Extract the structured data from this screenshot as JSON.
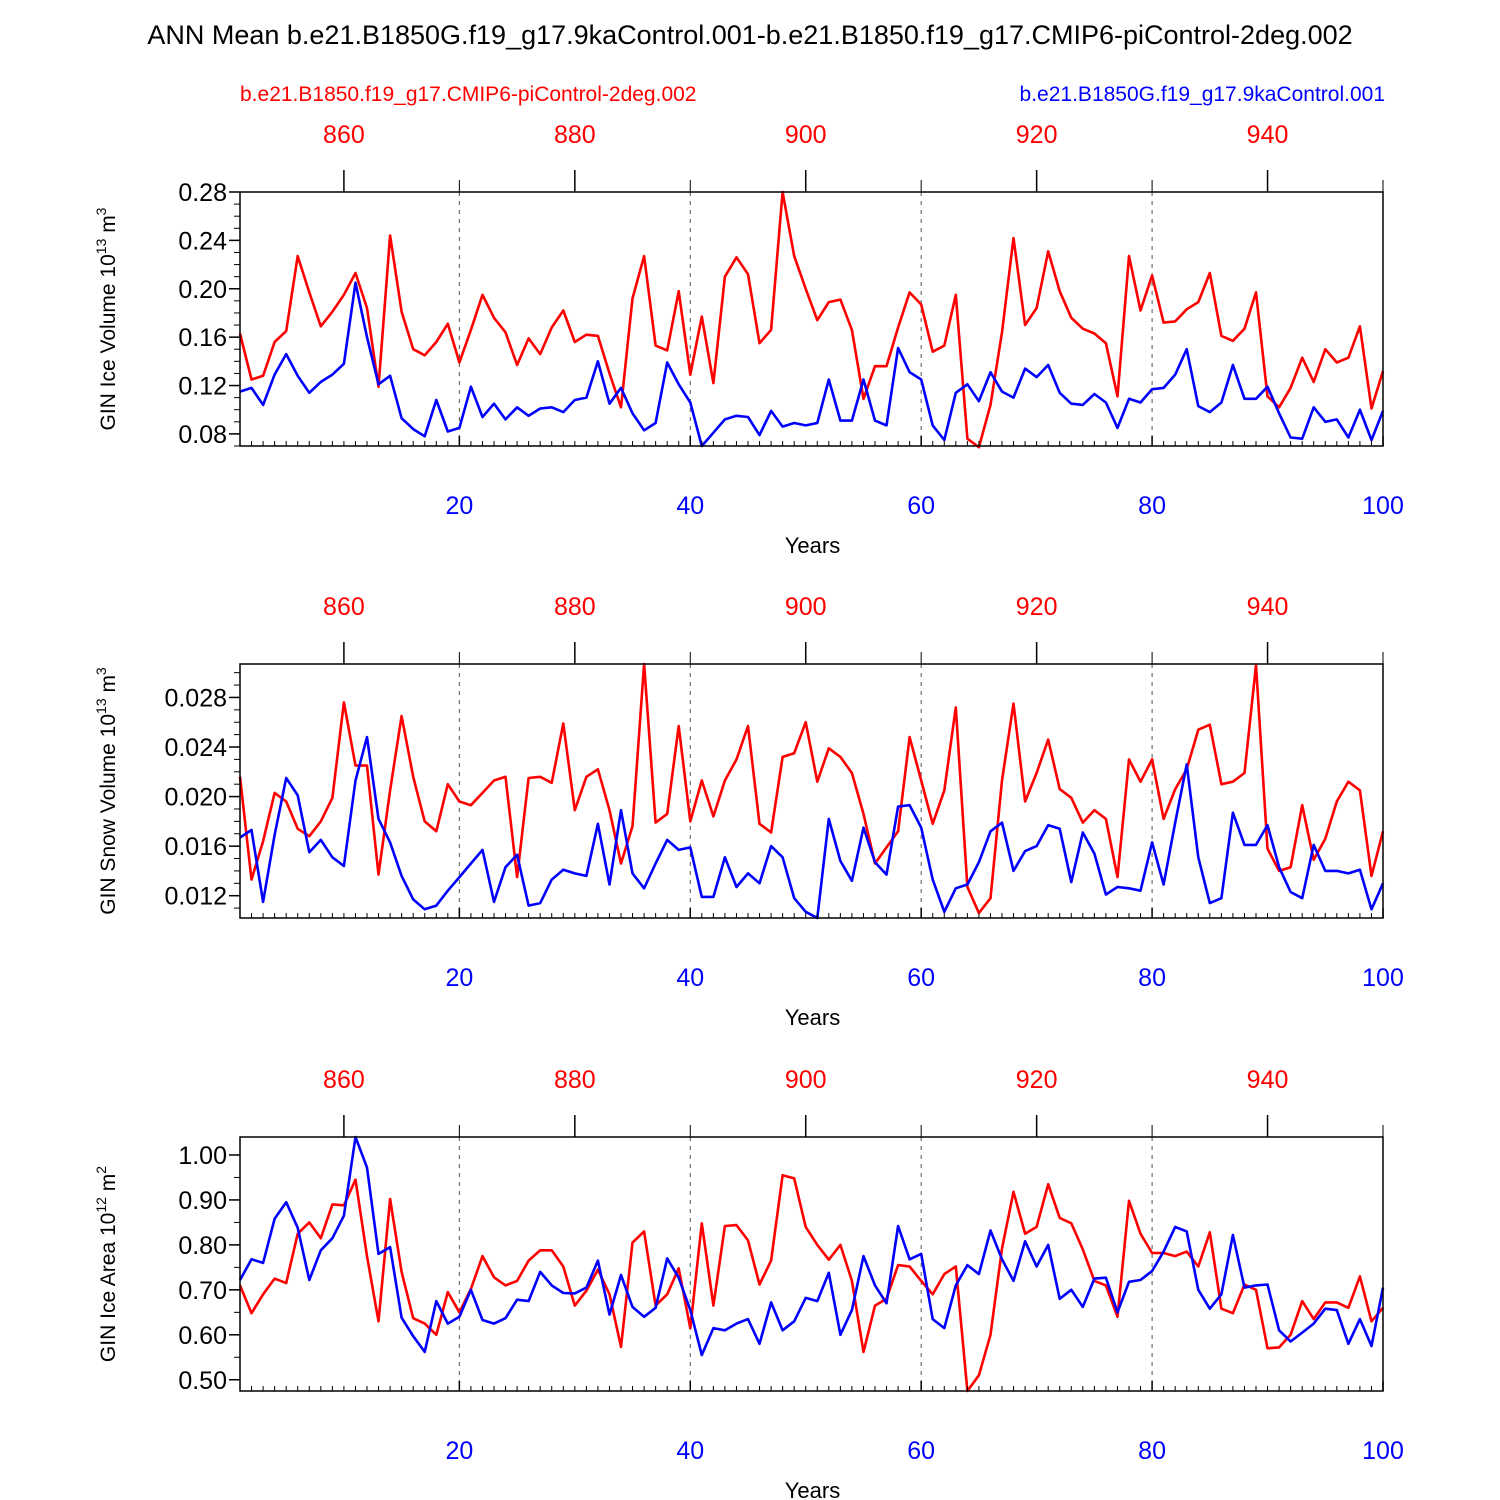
{
  "figure": {
    "title": "ANN Mean b.e21.B1850G.f19_g17.9kaControl.001-b.e21.B1850.f19_g17.CMIP6-piControl-2deg.002",
    "legend_red": "b.e21.B1850.f19_g17.CMIP6-piControl-2deg.002",
    "legend_blue": "b.e21.B1850G.f19_g17.9kaControl.001",
    "colors": {
      "red": "#ff0000",
      "blue": "#0000ff",
      "axis": "#000000"
    }
  },
  "chart_data": [
    {
      "type": "line",
      "title": "",
      "xlabel": "Years",
      "ylabel": "GIN Ice Volume 10^13 m^3",
      "ylabel_base": "GIN Ice Volume 10",
      "ylabel_exp1": "13",
      "ylabel_mid": " m",
      "ylabel_exp2": "3",
      "xlim": [
        1,
        100
      ],
      "ylim": [
        0.07,
        0.28
      ],
      "top_axis": {
        "xlim": [
          851,
          950
        ],
        "ticks": [
          860,
          880,
          900,
          920,
          940
        ]
      },
      "x_ticks": [
        20,
        40,
        60,
        80,
        100
      ],
      "y_ticks": [
        0.08,
        0.12,
        0.16,
        0.2,
        0.24,
        0.28
      ],
      "y_tick_labels": [
        "0.08",
        "0.12",
        "0.16",
        "0.20",
        "0.24",
        "0.28"
      ],
      "y_minor_step": 0.01,
      "grid_x": [
        20,
        40,
        60,
        80
      ],
      "series": [
        {
          "name": "b.e21.B1850.f19_g17.CMIP6-piControl-2deg.002",
          "color": "#ff0000",
          "values": [
            0.163,
            0.125,
            0.128,
            0.156,
            0.165,
            0.227,
            0.197,
            0.169,
            0.181,
            0.195,
            0.213,
            0.184,
            0.119,
            0.244,
            0.181,
            0.15,
            0.145,
            0.156,
            0.171,
            0.139,
            0.166,
            0.195,
            0.176,
            0.164,
            0.137,
            0.159,
            0.146,
            0.168,
            0.182,
            0.156,
            0.162,
            0.161,
            0.13,
            0.102,
            0.192,
            0.227,
            0.153,
            0.149,
            0.198,
            0.129,
            0.177,
            0.122,
            0.21,
            0.226,
            0.212,
            0.155,
            0.166,
            0.28,
            0.227,
            0.2,
            0.174,
            0.189,
            0.191,
            0.166,
            0.109,
            0.136,
            0.136,
            0.168,
            0.197,
            0.187,
            0.148,
            0.153,
            0.195,
            0.076,
            0.069,
            0.104,
            0.164,
            0.242,
            0.17,
            0.184,
            0.231,
            0.198,
            0.176,
            0.167,
            0.163,
            0.155,
            0.111,
            0.227,
            0.182,
            0.211,
            0.172,
            0.173,
            0.183,
            0.189,
            0.213,
            0.161,
            0.157,
            0.167,
            0.197,
            0.111,
            0.102,
            0.118,
            0.143,
            0.123,
            0.15,
            0.139,
            0.143,
            0.169,
            0.101,
            0.132
          ]
        },
        {
          "name": "b.e21.B1850G.f19_g17.9kaControl.001",
          "color": "#0000ff",
          "values": [
            0.115,
            0.118,
            0.104,
            0.129,
            0.146,
            0.128,
            0.114,
            0.123,
            0.129,
            0.138,
            0.205,
            0.16,
            0.121,
            0.128,
            0.093,
            0.084,
            0.078,
            0.108,
            0.082,
            0.085,
            0.119,
            0.094,
            0.105,
            0.092,
            0.102,
            0.095,
            0.101,
            0.102,
            0.098,
            0.108,
            0.11,
            0.14,
            0.105,
            0.118,
            0.097,
            0.083,
            0.089,
            0.139,
            0.121,
            0.106,
            0.07,
            0.081,
            0.092,
            0.095,
            0.094,
            0.079,
            0.099,
            0.086,
            0.089,
            0.087,
            0.089,
            0.125,
            0.091,
            0.091,
            0.125,
            0.091,
            0.087,
            0.151,
            0.131,
            0.125,
            0.087,
            0.075,
            0.114,
            0.121,
            0.107,
            0.131,
            0.115,
            0.11,
            0.134,
            0.127,
            0.137,
            0.114,
            0.105,
            0.104,
            0.113,
            0.106,
            0.085,
            0.109,
            0.106,
            0.117,
            0.118,
            0.129,
            0.15,
            0.103,
            0.098,
            0.106,
            0.137,
            0.109,
            0.109,
            0.119,
            0.097,
            0.077,
            0.076,
            0.102,
            0.09,
            0.092,
            0.077,
            0.1,
            0.075,
            0.099
          ]
        }
      ]
    },
    {
      "type": "line",
      "title": "",
      "xlabel": "Years",
      "ylabel": "GIN Snow Volume 10^13 m^3",
      "ylabel_base": "GIN Snow Volume 10",
      "ylabel_exp1": "13",
      "ylabel_mid": " m",
      "ylabel_exp2": "3",
      "xlim": [
        1,
        100
      ],
      "ylim": [
        0.0102,
        0.0307
      ],
      "top_axis": {
        "xlim": [
          851,
          950
        ],
        "ticks": [
          860,
          880,
          900,
          920,
          940
        ]
      },
      "x_ticks": [
        20,
        40,
        60,
        80,
        100
      ],
      "y_ticks": [
        0.012,
        0.016,
        0.02,
        0.024,
        0.028
      ],
      "y_tick_labels": [
        "0.012",
        "0.016",
        "0.020",
        "0.024",
        "0.028"
      ],
      "y_minor_step": 0.001,
      "grid_x": [
        20,
        40,
        60,
        80
      ],
      "series": [
        {
          "name": "b.e21.B1850.f19_g17.CMIP6-piControl-2deg.002",
          "color": "#ff0000",
          "values": [
            0.0216,
            0.0133,
            0.0164,
            0.0203,
            0.0196,
            0.0174,
            0.0168,
            0.018,
            0.0199,
            0.0276,
            0.0225,
            0.0225,
            0.0137,
            0.0205,
            0.0265,
            0.0216,
            0.018,
            0.0172,
            0.021,
            0.0196,
            0.0193,
            0.0203,
            0.0213,
            0.0216,
            0.0135,
            0.0215,
            0.0216,
            0.0211,
            0.0259,
            0.0189,
            0.0216,
            0.0222,
            0.0189,
            0.0146,
            0.0176,
            0.0307,
            0.0179,
            0.0186,
            0.0257,
            0.018,
            0.0213,
            0.0184,
            0.0213,
            0.023,
            0.0257,
            0.0178,
            0.0171,
            0.0232,
            0.0235,
            0.026,
            0.0212,
            0.0239,
            0.0232,
            0.0219,
            0.0186,
            0.0146,
            0.0159,
            0.0172,
            0.0248,
            0.0213,
            0.0178,
            0.0205,
            0.0272,
            0.0127,
            0.0106,
            0.0118,
            0.0213,
            0.0275,
            0.0196,
            0.0219,
            0.0246,
            0.0206,
            0.0199,
            0.0179,
            0.0189,
            0.0182,
            0.0135,
            0.023,
            0.0212,
            0.023,
            0.0182,
            0.0206,
            0.0222,
            0.0254,
            0.0258,
            0.021,
            0.0212,
            0.0219,
            0.0306,
            0.0158,
            0.014,
            0.0143,
            0.0193,
            0.0149,
            0.0166,
            0.0196,
            0.0212,
            0.0205,
            0.0136,
            0.0172
          ]
        },
        {
          "name": "b.e21.B1850G.f19_g17.9kaControl.001",
          "color": "#0000ff",
          "values": [
            0.0167,
            0.0173,
            0.0115,
            0.0169,
            0.0215,
            0.0201,
            0.0155,
            0.0165,
            0.0151,
            0.0144,
            0.0213,
            0.0248,
            0.0182,
            0.0163,
            0.0136,
            0.0117,
            0.0109,
            0.0112,
            0.0124,
            0.0135,
            0.0146,
            0.0157,
            0.0115,
            0.0143,
            0.0153,
            0.0112,
            0.0114,
            0.0133,
            0.0141,
            0.0138,
            0.0136,
            0.0178,
            0.0129,
            0.0189,
            0.0138,
            0.0126,
            0.0146,
            0.0165,
            0.0157,
            0.0159,
            0.0119,
            0.0119,
            0.0151,
            0.0127,
            0.0138,
            0.013,
            0.016,
            0.0151,
            0.0118,
            0.0107,
            0.0102,
            0.0182,
            0.0148,
            0.0132,
            0.0175,
            0.0147,
            0.0137,
            0.0192,
            0.0193,
            0.0175,
            0.0133,
            0.0107,
            0.0126,
            0.0129,
            0.0147,
            0.0172,
            0.0179,
            0.014,
            0.0156,
            0.016,
            0.0177,
            0.0174,
            0.0131,
            0.0171,
            0.0154,
            0.0121,
            0.0127,
            0.0126,
            0.0124,
            0.0163,
            0.0129,
            0.0179,
            0.0226,
            0.0151,
            0.0114,
            0.0118,
            0.0187,
            0.0161,
            0.0161,
            0.0177,
            0.0143,
            0.0123,
            0.0118,
            0.0161,
            0.014,
            0.014,
            0.0138,
            0.0141,
            0.0109,
            0.013
          ]
        }
      ]
    },
    {
      "type": "line",
      "title": "",
      "xlabel": "Years",
      "ylabel": "GIN Ice Area 10^12 m^2",
      "ylabel_base": "GIN Ice Area 10",
      "ylabel_exp1": "12",
      "ylabel_mid": " m",
      "ylabel_exp2": "2",
      "xlim": [
        1,
        100
      ],
      "ylim": [
        0.475,
        1.04
      ],
      "top_axis": {
        "xlim": [
          851,
          950
        ],
        "ticks": [
          860,
          880,
          900,
          920,
          940
        ]
      },
      "x_ticks": [
        20,
        40,
        60,
        80,
        100
      ],
      "y_ticks": [
        0.5,
        0.6,
        0.7,
        0.8,
        0.9,
        1.0
      ],
      "y_tick_labels": [
        "0.50",
        "0.60",
        "0.70",
        "0.80",
        "0.90",
        "1.00"
      ],
      "y_minor_step": 0.05,
      "grid_x": [
        20,
        40,
        60,
        80
      ],
      "series": [
        {
          "name": "b.e21.B1850.f19_g17.CMIP6-piControl-2deg.002",
          "color": "#ff0000",
          "values": [
            0.71,
            0.648,
            0.69,
            0.725,
            0.715,
            0.825,
            0.85,
            0.815,
            0.89,
            0.888,
            0.945,
            0.775,
            0.63,
            0.902,
            0.74,
            0.637,
            0.625,
            0.6,
            0.695,
            0.65,
            0.702,
            0.775,
            0.728,
            0.71,
            0.72,
            0.765,
            0.788,
            0.788,
            0.752,
            0.665,
            0.698,
            0.745,
            0.69,
            0.573,
            0.805,
            0.83,
            0.665,
            0.69,
            0.748,
            0.615,
            0.848,
            0.665,
            0.842,
            0.844,
            0.81,
            0.712,
            0.765,
            0.955,
            0.948,
            0.84,
            0.8,
            0.767,
            0.8,
            0.72,
            0.562,
            0.665,
            0.68,
            0.755,
            0.752,
            0.72,
            0.69,
            0.735,
            0.752,
            0.475,
            0.51,
            0.6,
            0.792,
            0.918,
            0.825,
            0.84,
            0.935,
            0.86,
            0.848,
            0.79,
            0.72,
            0.71,
            0.64,
            0.898,
            0.825,
            0.782,
            0.782,
            0.775,
            0.785,
            0.752,
            0.828,
            0.658,
            0.648,
            0.712,
            0.7,
            0.57,
            0.572,
            0.6,
            0.675,
            0.635,
            0.672,
            0.672,
            0.66,
            0.73,
            0.63,
            0.66
          ]
        },
        {
          "name": "b.e21.B1850G.f19_g17.9kaControl.001",
          "color": "#0000ff",
          "values": [
            0.722,
            0.768,
            0.76,
            0.858,
            0.895,
            0.838,
            0.722,
            0.788,
            0.815,
            0.865,
            1.04,
            0.972,
            0.78,
            0.795,
            0.638,
            0.597,
            0.562,
            0.675,
            0.625,
            0.64,
            0.7,
            0.633,
            0.625,
            0.637,
            0.678,
            0.675,
            0.74,
            0.71,
            0.693,
            0.692,
            0.705,
            0.765,
            0.645,
            0.733,
            0.662,
            0.64,
            0.66,
            0.77,
            0.727,
            0.655,
            0.555,
            0.615,
            0.61,
            0.625,
            0.635,
            0.58,
            0.672,
            0.61,
            0.63,
            0.682,
            0.675,
            0.738,
            0.6,
            0.655,
            0.775,
            0.71,
            0.67,
            0.842,
            0.768,
            0.78,
            0.635,
            0.615,
            0.71,
            0.755,
            0.735,
            0.832,
            0.768,
            0.72,
            0.808,
            0.752,
            0.8,
            0.68,
            0.7,
            0.662,
            0.725,
            0.727,
            0.65,
            0.718,
            0.722,
            0.742,
            0.785,
            0.84,
            0.83,
            0.7,
            0.658,
            0.69,
            0.822,
            0.705,
            0.71,
            0.712,
            0.61,
            0.585,
            0.605,
            0.625,
            0.658,
            0.655,
            0.58,
            0.635,
            0.575,
            0.705
          ]
        }
      ]
    }
  ]
}
